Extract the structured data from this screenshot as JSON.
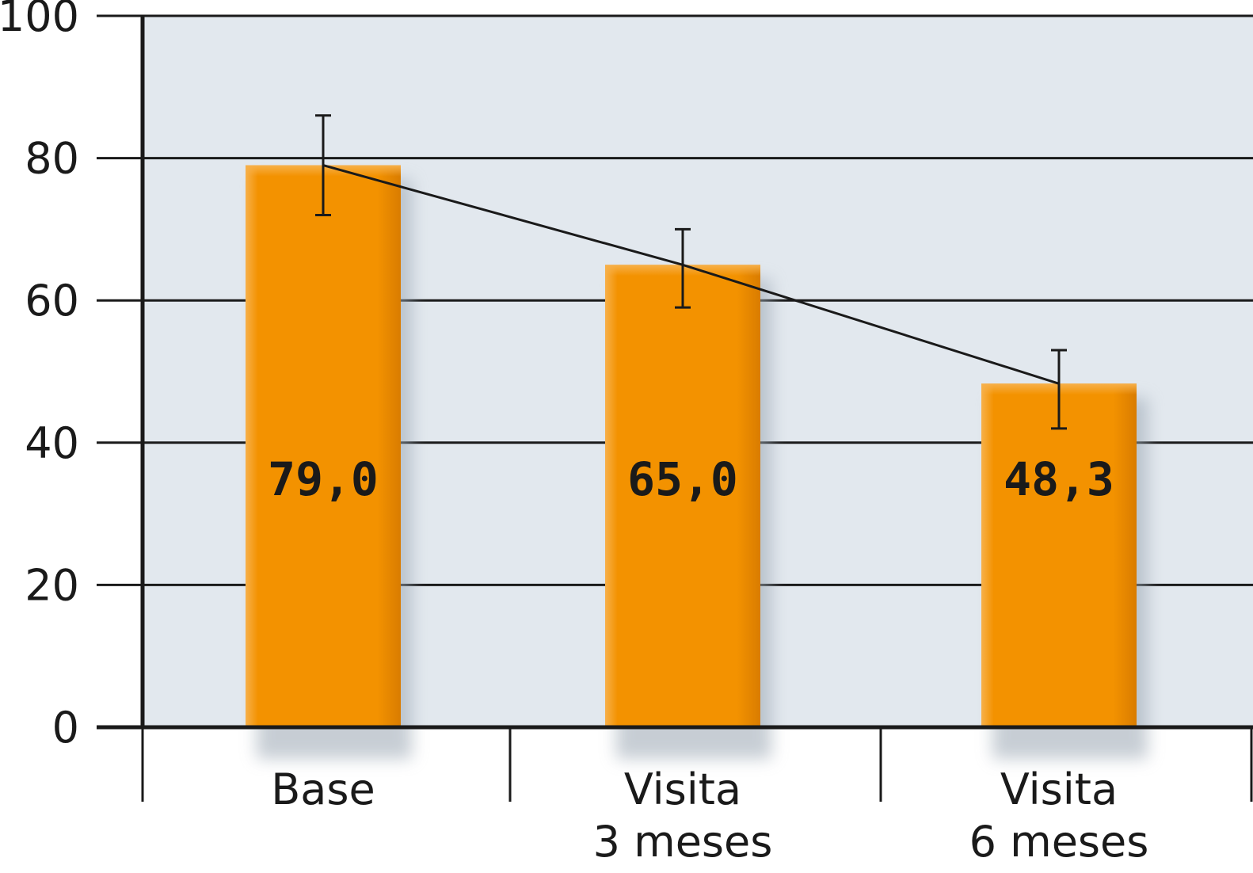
{
  "chart_data": {
    "type": "bar",
    "categories": [
      [
        "Base"
      ],
      [
        "Visita",
        "3 meses"
      ],
      [
        "Visita",
        "6 meses"
      ]
    ],
    "values": [
      79.0,
      65.0,
      48.3
    ],
    "value_labels": [
      "79,0",
      "65,0",
      "48,3"
    ],
    "error_bars": [
      {
        "low": 72,
        "high": 86
      },
      {
        "low": 59,
        "high": 70
      },
      {
        "low": 42,
        "high": 53
      }
    ],
    "trend_line": true,
    "yticks": [
      "0",
      "20",
      "40",
      "60",
      "80",
      "100"
    ],
    "ytick_values": [
      0,
      20,
      40,
      60,
      80,
      100
    ],
    "ylim": [
      0,
      100
    ],
    "grid": true,
    "title": "",
    "xlabel": "",
    "ylabel": ""
  },
  "colors": {
    "plot_background": "#e2e8ee",
    "bar_fill": "#f39200",
    "bar_highlight": "#f7b04a",
    "bar_shade": "#d97c00",
    "bar_shadow": "#9aa6b2",
    "gridline": "#1a1a1a",
    "axis": "#1a1a1a",
    "error_bar": "#1a1a1a",
    "trend_line": "#1a1a1a",
    "text": "#1a1a1a"
  }
}
